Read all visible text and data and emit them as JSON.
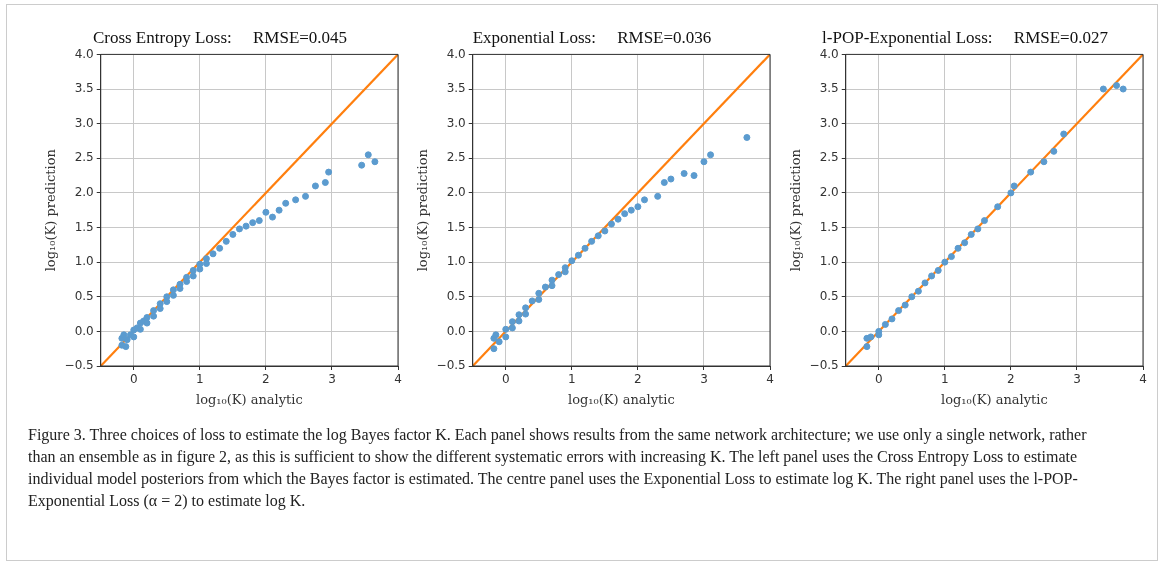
{
  "chart_data": [
    {
      "type": "scatter",
      "title": "Cross Entropy Loss:     RMSE=0.045",
      "xlabel": "log₁₀(K) analytic",
      "ylabel": "log₁₀(K) prediction",
      "xlim": [
        -0.5,
        4
      ],
      "xticks": [
        0,
        1,
        2,
        3,
        4
      ],
      "ylim": [
        -0.5,
        4
      ],
      "yticks": [
        {
          "value": -0.5,
          "label": "−0.5"
        },
        {
          "value": 0,
          "label": "0.0"
        },
        0.5,
        {
          "value": 1,
          "label": "1.0"
        },
        1.5,
        {
          "value": 2,
          "label": "2.0"
        },
        2.5,
        {
          "value": 3,
          "label": "3.0"
        },
        3.5,
        {
          "value": 4,
          "label": "4.0"
        }
      ],
      "grid": true,
      "marker": "circle",
      "series": [
        {
          "type": "scatter",
          "color": "#5b9bcf",
          "x": [
            -0.18,
            -0.18,
            -0.15,
            -0.12,
            -0.1,
            -0.05,
            0,
            0,
            0.05,
            0.1,
            0.1,
            0.15,
            0.2,
            0.2,
            0.3,
            0.3,
            0.4,
            0.4,
            0.5,
            0.5,
            0.6,
            0.6,
            0.7,
            0.7,
            0.8,
            0.8,
            0.9,
            0.9,
            1.0,
            1.0,
            1.1,
            1.1,
            1.2,
            1.3,
            1.4,
            1.5,
            1.6,
            1.7,
            1.8,
            1.9,
            2.0,
            2.1,
            2.2,
            2.3,
            2.45,
            2.6,
            2.75,
            2.9,
            2.95,
            3.45,
            3.55,
            3.65
          ],
          "values": [
            -0.2,
            -0.1,
            -0.05,
            -0.22,
            -0.12,
            -0.05,
            0.02,
            -0.08,
            0.05,
            0.12,
            0.03,
            0.15,
            0.2,
            0.12,
            0.3,
            0.22,
            0.4,
            0.33,
            0.5,
            0.43,
            0.6,
            0.52,
            0.68,
            0.62,
            0.78,
            0.72,
            0.88,
            0.8,
            0.97,
            0.9,
            1.05,
            0.98,
            1.12,
            1.2,
            1.3,
            1.4,
            1.48,
            1.52,
            1.57,
            1.6,
            1.72,
            1.65,
            1.75,
            1.85,
            1.9,
            1.95,
            2.1,
            2.15,
            2.3,
            2.4,
            2.55,
            2.45
          ]
        },
        {
          "type": "line",
          "color": "#ff7f0e",
          "marker": "none",
          "x": [
            -0.5,
            4
          ],
          "values": [
            -0.5,
            4
          ]
        }
      ],
      "annotations": [
        "Figure 3. Three choices of loss to estimate the log Bayes factor K. Each panel shows results from the same network architecture; we use only a single network, rather than an ensemble as in figure 2, as this is sufficient to show the different systematic errors with increasing K. The left panel uses the Cross Entropy Loss to estimate individual model posteriors from which the Bayes factor is estimated. The centre panel uses the Exponential Loss to estimate log K. The right panel uses the l-POP-Exponential Loss (α = 2) to estimate log K."
      ]
    },
    {
      "type": "scatter",
      "title": "Exponential Loss:     RMSE=0.036",
      "xlabel": "log₁₀(K) analytic",
      "ylabel": "log₁₀(K) prediction",
      "xlim": [
        -0.5,
        4
      ],
      "xticks": [
        0,
        1,
        2,
        3,
        4
      ],
      "ylim": [
        -0.5,
        4
      ],
      "yticks": [
        {
          "value": -0.5,
          "label": "−0.5"
        },
        {
          "value": 0,
          "label": "0.0"
        },
        0.5,
        {
          "value": 1,
          "label": "1.0"
        },
        1.5,
        {
          "value": 2,
          "label": "2.0"
        },
        2.5,
        {
          "value": 3,
          "label": "3.0"
        },
        3.5,
        {
          "value": 4,
          "label": "4.0"
        }
      ],
      "grid": true,
      "marker": "circle",
      "series": [
        {
          "type": "scatter",
          "color": "#5b9bcf",
          "x": [
            -0.18,
            -0.18,
            -0.15,
            -0.1,
            0,
            0,
            0.1,
            0.1,
            0.2,
            0.2,
            0.3,
            0.3,
            0.4,
            0.5,
            0.5,
            0.6,
            0.7,
            0.7,
            0.8,
            0.9,
            0.9,
            1.0,
            1.1,
            1.2,
            1.3,
            1.4,
            1.5,
            1.6,
            1.7,
            1.8,
            1.9,
            2.0,
            2.1,
            2.3,
            2.4,
            2.5,
            2.7,
            2.85,
            3.0,
            3.1,
            3.65
          ],
          "values": [
            -0.25,
            -0.1,
            -0.05,
            -0.15,
            0.03,
            -0.08,
            0.14,
            0.05,
            0.24,
            0.15,
            0.34,
            0.25,
            0.44,
            0.55,
            0.46,
            0.64,
            0.74,
            0.66,
            0.82,
            0.92,
            0.86,
            1.02,
            1.1,
            1.2,
            1.3,
            1.38,
            1.45,
            1.55,
            1.62,
            1.7,
            1.75,
            1.8,
            1.9,
            1.95,
            2.15,
            2.2,
            2.28,
            2.25,
            2.45,
            2.55,
            2.8
          ]
        },
        {
          "type": "line",
          "color": "#ff7f0e",
          "marker": "none",
          "x": [
            -0.5,
            4
          ],
          "values": [
            -0.5,
            4
          ]
        }
      ]
    },
    {
      "type": "scatter",
      "title": "l-POP-Exponential Loss:     RMSE=0.027",
      "xlabel": "log₁₀(K) analytic",
      "ylabel": "log₁₀(K) prediction",
      "xlim": [
        -0.5,
        4
      ],
      "xticks": [
        0,
        1,
        2,
        3,
        4
      ],
      "ylim": [
        -0.5,
        4
      ],
      "yticks": [
        {
          "value": -0.5,
          "label": "−0.5"
        },
        {
          "value": 0,
          "label": "0.0"
        },
        0.5,
        {
          "value": 1,
          "label": "1.0"
        },
        1.5,
        {
          "value": 2,
          "label": "2.0"
        },
        2.5,
        {
          "value": 3,
          "label": "3.0"
        },
        3.5,
        {
          "value": 4,
          "label": "4.0"
        }
      ],
      "grid": true,
      "marker": "circle",
      "series": [
        {
          "type": "scatter",
          "color": "#5b9bcf",
          "x": [
            -0.18,
            -0.18,
            -0.12,
            0,
            0,
            0.1,
            0.2,
            0.3,
            0.4,
            0.5,
            0.6,
            0.7,
            0.8,
            0.9,
            1.0,
            1.1,
            1.2,
            1.3,
            1.4,
            1.5,
            1.6,
            1.8,
            2.0,
            2.05,
            2.3,
            2.5,
            2.65,
            2.8,
            3.4,
            3.6,
            3.7
          ],
          "values": [
            -0.22,
            -0.1,
            -0.08,
            0.0,
            -0.05,
            0.1,
            0.18,
            0.3,
            0.38,
            0.5,
            0.58,
            0.7,
            0.8,
            0.88,
            1.0,
            1.08,
            1.2,
            1.28,
            1.4,
            1.48,
            1.6,
            1.8,
            2.0,
            2.1,
            2.3,
            2.45,
            2.6,
            2.85,
            3.5,
            3.55,
            3.5
          ]
        },
        {
          "type": "line",
          "color": "#ff7f0e",
          "marker": "none",
          "x": [
            -0.5,
            4
          ],
          "values": [
            -0.5,
            4
          ]
        }
      ]
    }
  ]
}
